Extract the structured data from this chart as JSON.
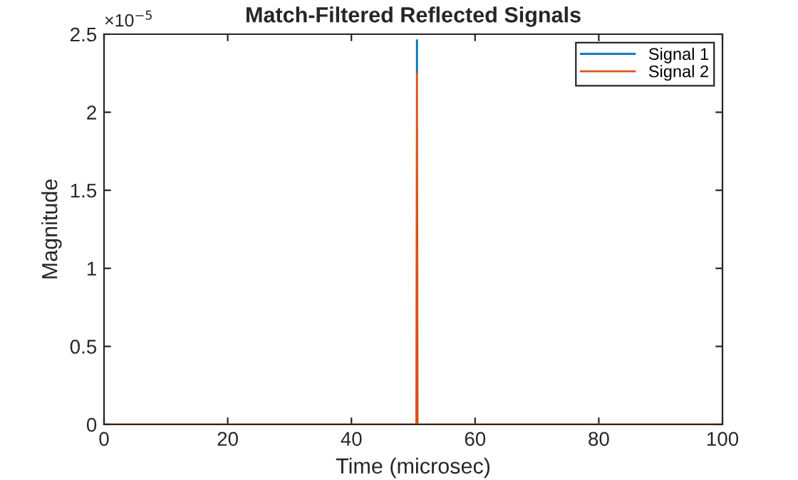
{
  "chart_data": {
    "type": "line",
    "title": "Match-Filtered Reflected Signals",
    "xlabel": "Time (microsec)",
    "ylabel": "Magnitude",
    "annotations": [
      "×10$^{−5}$"
    ],
    "series": [
      {
        "name": "Signal 1",
        "color": "#0072bd",
        "x": [
          50.6,
          50.6
        ],
        "values": [
          2.25,
          2.46
        ]
      },
      {
        "name": "Signal 2",
        "color": "#d95319",
        "x": [
          0,
          50.5,
          50.6,
          50.7,
          100
        ],
        "values": [
          0,
          0,
          2.25,
          0,
          0
        ]
      }
    ],
    "xlim": [
      0,
      100
    ],
    "xticks": [
      0,
      20,
      40,
      60,
      80,
      100
    ],
    "ylim": [
      0,
      2.5
    ],
    "yticks": [
      0,
      0.5,
      1,
      1.5,
      2,
      2.5
    ],
    "grid": false,
    "legend": "top right",
    "marker": "none",
    "line_style": "solid"
  }
}
